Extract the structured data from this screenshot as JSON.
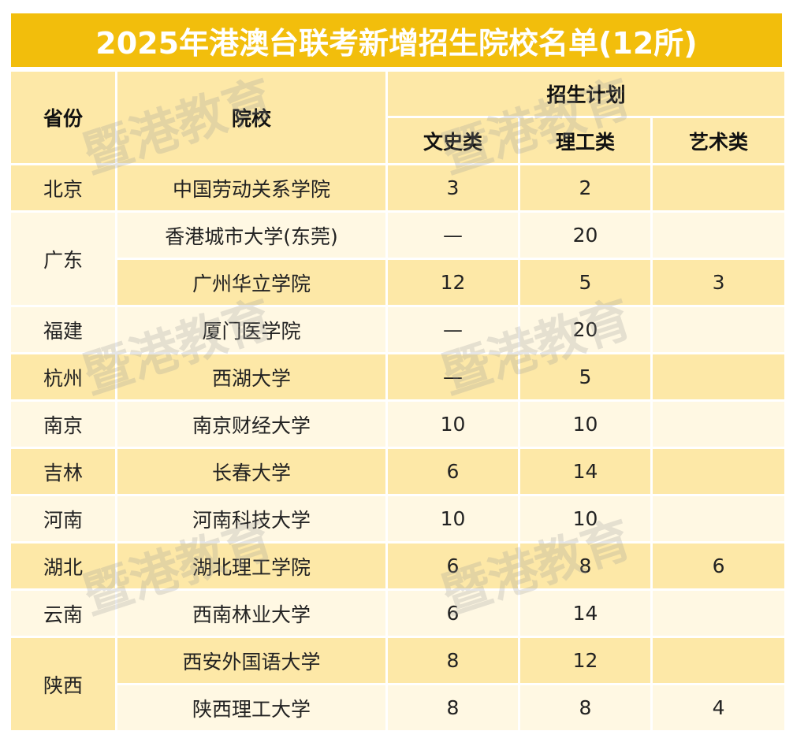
{
  "title": "2025年港澳台联考新增招生院校名单(12所)",
  "header": {
    "province": "省份",
    "school": "院校",
    "plan": "招生计划",
    "liberal": "文史类",
    "science": "理工类",
    "art": "艺术类"
  },
  "rows": [
    {
      "province": "北京",
      "school": "中国劳动关系学院",
      "liberal": "3",
      "science": "2",
      "art": ""
    },
    {
      "province": "广东",
      "school": "香港城市大学(东莞)",
      "liberal": "—",
      "science": "20",
      "art": ""
    },
    {
      "province": "",
      "school": "广州华立学院",
      "liberal": "12",
      "science": "5",
      "art": "3"
    },
    {
      "province": "福建",
      "school": "厦门医学院",
      "liberal": "—",
      "science": "20",
      "art": ""
    },
    {
      "province": "杭州",
      "school": "西湖大学",
      "liberal": "—",
      "science": "5",
      "art": ""
    },
    {
      "province": "南京",
      "school": "南京财经大学",
      "liberal": "10",
      "science": "10",
      "art": ""
    },
    {
      "province": "吉林",
      "school": "长春大学",
      "liberal": "6",
      "science": "14",
      "art": ""
    },
    {
      "province": "河南",
      "school": "河南科技大学",
      "liberal": "10",
      "science": "10",
      "art": ""
    },
    {
      "province": "湖北",
      "school": "湖北理工学院",
      "liberal": "6",
      "science": "8",
      "art": "6"
    },
    {
      "province": "云南",
      "school": "西南林业大学",
      "liberal": "6",
      "science": "14",
      "art": ""
    },
    {
      "province": "陕西",
      "school": "西安外国语大学",
      "liberal": "8",
      "science": "12",
      "art": ""
    },
    {
      "province": "",
      "school": "陕西理工大学",
      "liberal": "8",
      "science": "8",
      "art": "4"
    }
  ],
  "watermark": "暨港教育",
  "colors": {
    "title_bg": "#f2be0c",
    "dark_row": "#fde8a7",
    "light_row": "#fff8e3"
  }
}
